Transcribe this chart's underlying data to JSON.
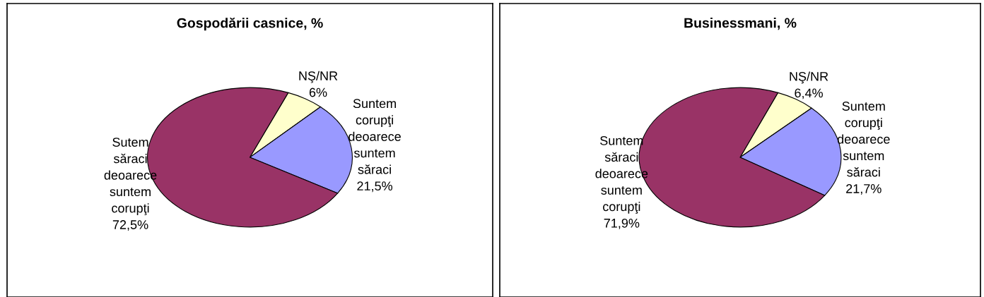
{
  "chart_data": [
    {
      "type": "pie",
      "title": "Gospodării casnice, %",
      "categories": [
        "NŞ/NR",
        "Suntem\ncorupţi\ndeoarece\nsuntem\nsăraci",
        "Sutem\nsăraci\ndeoarece\nsuntem\ncorupţi"
      ],
      "values": [
        6,
        21.5,
        72.5
      ],
      "value_labels": [
        "6%",
        "21,5%",
        "72,5%"
      ],
      "colors": [
        "#ffffcc",
        "#9999ff",
        "#993366"
      ],
      "legend": false
    },
    {
      "type": "pie",
      "title": "Businessmani, %",
      "categories": [
        "NŞ/NR",
        "Suntem\ncorupţi\ndeoarece\nsuntem\nsăraci",
        "Suntem\nsăraci\ndeoarece\nsuntem\ncorupţi"
      ],
      "values": [
        6.4,
        21.7,
        71.9
      ],
      "value_labels": [
        "6,4%",
        "21,7%",
        "71,9%"
      ],
      "colors": [
        "#ffffcc",
        "#9999ff",
        "#993366"
      ],
      "legend": false
    }
  ]
}
